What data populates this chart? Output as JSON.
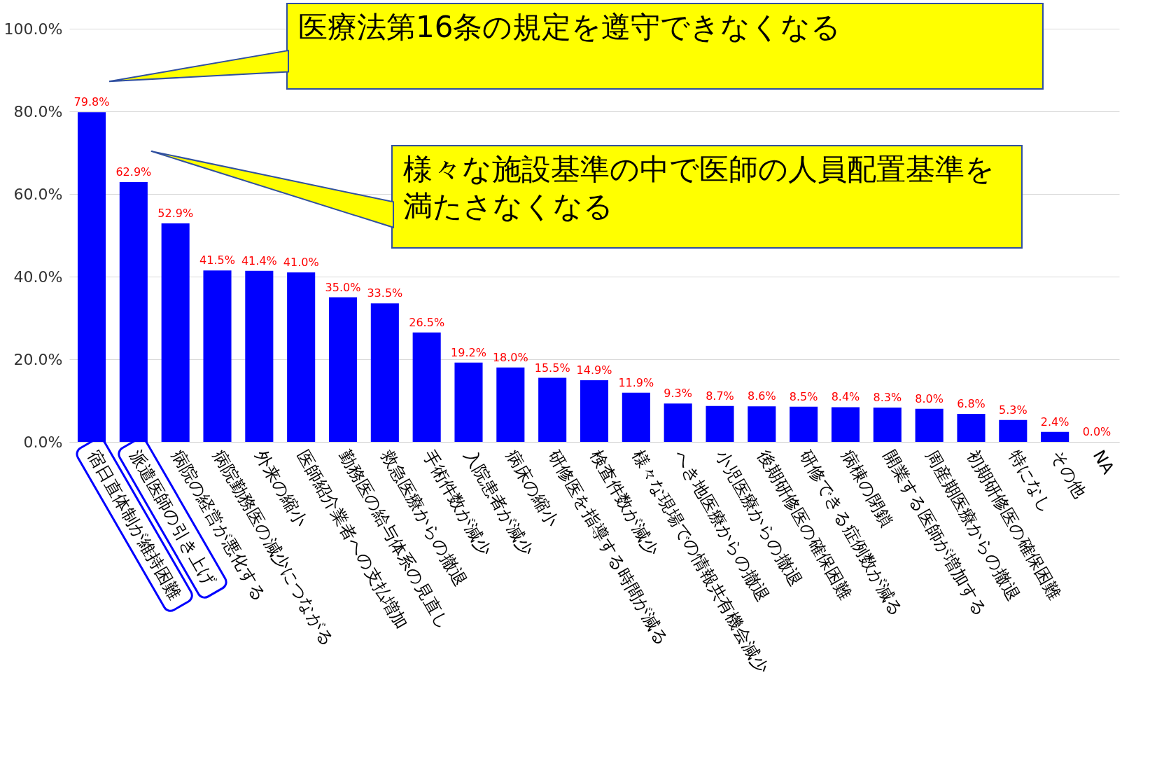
{
  "chart_data": {
    "type": "bar",
    "categories": [
      "宿日直体制が維持困難",
      "派遣医師の引き上げ",
      "病院の経営が悪化する",
      "病院勤務医の減少につながる",
      "外来の縮小",
      "医師紹介業者への支払増加",
      "勤務医の給与体系の見直し",
      "救急医療からの撤退",
      "手術件数が減少",
      "入院患者が減少",
      "病床の縮小",
      "研修医を指導する時間が減る",
      "検査件数が減少",
      "様々な現場での情報共有機会減少",
      "へき地医療からの撤退",
      "小児医療からの撤退",
      "後期研修医の確保困難",
      "研修できる症例数が減る",
      "病棟の閉鎖",
      "開業する医師が増加する",
      "周産期医療からの撤退",
      "初期研修医の確保困難",
      "特になし",
      "その他",
      "NA"
    ],
    "values": [
      79.8,
      62.9,
      52.9,
      41.5,
      41.4,
      41.0,
      35.0,
      33.5,
      26.5,
      19.2,
      18.0,
      15.5,
      14.9,
      11.9,
      9.3,
      8.7,
      8.6,
      8.5,
      8.4,
      8.3,
      8.0,
      6.8,
      5.3,
      2.4,
      0.0
    ],
    "value_labels": [
      "79.8%",
      "62.9%",
      "52.9%",
      "41.5%",
      "41.4%",
      "41.0%",
      "35.0%",
      "33.5%",
      "26.5%",
      "19.2%",
      "18.0%",
      "15.5%",
      "14.9%",
      "11.9%",
      "9.3%",
      "8.7%",
      "8.6%",
      "8.5%",
      "8.4%",
      "8.3%",
      "8.0%",
      "6.8%",
      "5.3%",
      "2.4%",
      "0.0%"
    ],
    "color": "#0000ff",
    "ylim": [
      0,
      100
    ],
    "yticks": [
      {
        "value": 0,
        "label": "0.0%"
      },
      {
        "value": 20,
        "label": "20.0%"
      },
      {
        "value": 40,
        "label": "40.0%"
      },
      {
        "value": 60,
        "label": "60.0%"
      },
      {
        "value": 80,
        "label": "80.0%"
      },
      {
        "value": 100,
        "label": "100.0%"
      }
    ],
    "grid": "y",
    "annotations": [
      "医療法第16条の規定を遵守できなくなる",
      "様々な施設基準の中で医師の人員配置基準を満たさなくなる"
    ]
  }
}
